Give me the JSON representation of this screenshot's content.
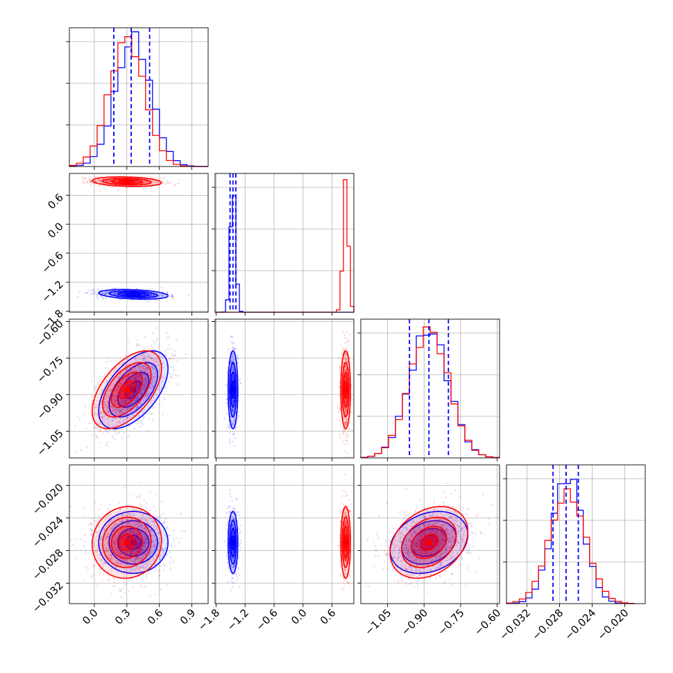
{
  "chart_data": {
    "type": "corner",
    "title": "",
    "grid": true,
    "colors": {
      "blue": "#0000ff",
      "red": "#ff0000"
    },
    "series": [
      {
        "color": "#0000ff",
        "mean": [
          0.36,
          -1.45,
          -0.88,
          -0.027
        ],
        "sd": [
          0.16,
          0.05,
          0.08,
          0.0019
        ],
        "corr": {
          "0-1": -0.3,
          "0-2": 0.55,
          "0-3": 0.0,
          "1-2": 0.0,
          "1-3": 0.0,
          "2-3": 0.25
        }
      },
      {
        "color": "#ff0000",
        "mean": [
          0.3,
          0.88,
          -0.88,
          -0.027
        ],
        "sd": [
          0.16,
          0.05,
          0.08,
          0.0022
        ],
        "corr": {
          "0-1": -0.2,
          "0-2": 0.55,
          "0-3": 0.05,
          "1-2": 0.0,
          "1-3": 0.0,
          "2-3": 0.3
        }
      }
    ],
    "quantiles": [
      [
        0.18,
        0.34,
        0.51
      ],
      [
        -1.51,
        -1.45,
        -1.39
      ],
      [
        -0.96,
        -0.88,
        -0.8
      ],
      [
        -0.0288,
        -0.0272,
        -0.0257
      ]
    ],
    "ranges": [
      [
        -0.23,
        1.05
      ],
      [
        -1.82,
        1.05
      ],
      [
        -1.16,
        -0.59
      ],
      [
        -0.0345,
        -0.0175
      ]
    ],
    "ticks": [
      [
        "0.0",
        "0.3",
        "0.6",
        "0.9"
      ],
      [
        "−1.8",
        "−1.2",
        "−0.6",
        "0.0",
        "0.6"
      ],
      [
        "−1.05",
        "−0.90",
        "−0.75",
        "−0.60"
      ],
      [
        "−0.032",
        "−0.028",
        "−0.024",
        "−0.020"
      ]
    ],
    "tick_values": [
      [
        0.0,
        0.3,
        0.6,
        0.9
      ],
      [
        -1.8,
        -1.2,
        -0.6,
        0.0,
        0.6
      ],
      [
        -1.05,
        -0.9,
        -0.75,
        -0.6
      ],
      [
        -0.032,
        -0.028,
        -0.024,
        -0.02
      ]
    ],
    "y_label_rows": [
      1,
      2,
      3
    ],
    "y_label_ticks": [
      null,
      [
        "0.6",
        "0.0",
        "−0.6",
        "−1.2",
        "−1.8"
      ],
      [
        "−0.60",
        "−0.75",
        "−0.90",
        "−1.05"
      ],
      [
        "−0.020",
        "−0.024",
        "−0.028",
        "−0.032"
      ]
    ]
  }
}
